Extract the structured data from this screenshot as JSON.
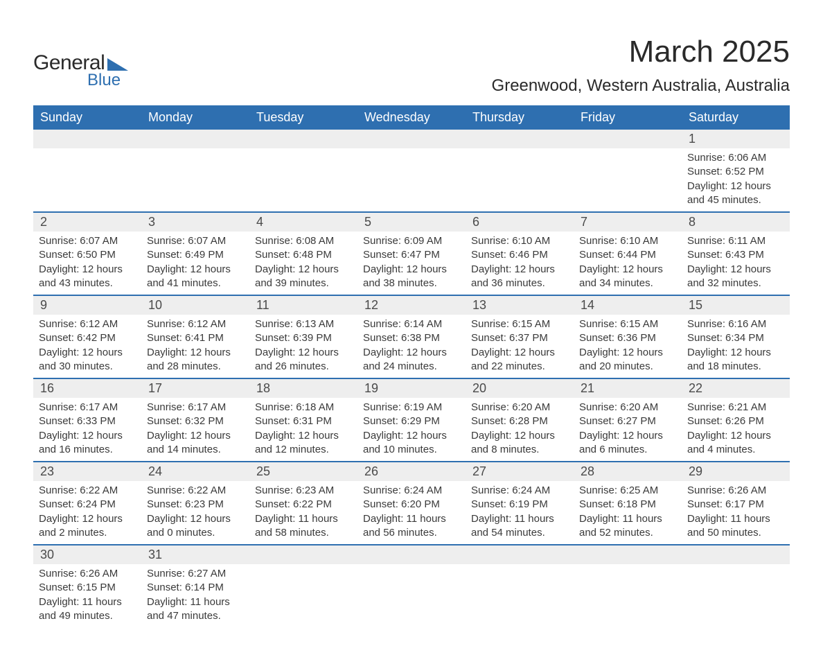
{
  "logo": {
    "general": "General",
    "blue": "Blue"
  },
  "title": "March 2025",
  "location": "Greenwood, Western Australia, Australia",
  "colors": {
    "header_bg": "#2e6fb0",
    "header_text": "#ffffff",
    "daynum_bg": "#eeeeee",
    "week_border": "#2e6fb0",
    "body_text": "#3a3a3a"
  },
  "days_of_week": [
    "Sunday",
    "Monday",
    "Tuesday",
    "Wednesday",
    "Thursday",
    "Friday",
    "Saturday"
  ],
  "weeks": [
    [
      null,
      null,
      null,
      null,
      null,
      null,
      {
        "n": "1",
        "sr": "Sunrise: 6:06 AM",
        "ss": "Sunset: 6:52 PM",
        "d1": "Daylight: 12 hours",
        "d2": "and 45 minutes."
      }
    ],
    [
      {
        "n": "2",
        "sr": "Sunrise: 6:07 AM",
        "ss": "Sunset: 6:50 PM",
        "d1": "Daylight: 12 hours",
        "d2": "and 43 minutes."
      },
      {
        "n": "3",
        "sr": "Sunrise: 6:07 AM",
        "ss": "Sunset: 6:49 PM",
        "d1": "Daylight: 12 hours",
        "d2": "and 41 minutes."
      },
      {
        "n": "4",
        "sr": "Sunrise: 6:08 AM",
        "ss": "Sunset: 6:48 PM",
        "d1": "Daylight: 12 hours",
        "d2": "and 39 minutes."
      },
      {
        "n": "5",
        "sr": "Sunrise: 6:09 AM",
        "ss": "Sunset: 6:47 PM",
        "d1": "Daylight: 12 hours",
        "d2": "and 38 minutes."
      },
      {
        "n": "6",
        "sr": "Sunrise: 6:10 AM",
        "ss": "Sunset: 6:46 PM",
        "d1": "Daylight: 12 hours",
        "d2": "and 36 minutes."
      },
      {
        "n": "7",
        "sr": "Sunrise: 6:10 AM",
        "ss": "Sunset: 6:44 PM",
        "d1": "Daylight: 12 hours",
        "d2": "and 34 minutes."
      },
      {
        "n": "8",
        "sr": "Sunrise: 6:11 AM",
        "ss": "Sunset: 6:43 PM",
        "d1": "Daylight: 12 hours",
        "d2": "and 32 minutes."
      }
    ],
    [
      {
        "n": "9",
        "sr": "Sunrise: 6:12 AM",
        "ss": "Sunset: 6:42 PM",
        "d1": "Daylight: 12 hours",
        "d2": "and 30 minutes."
      },
      {
        "n": "10",
        "sr": "Sunrise: 6:12 AM",
        "ss": "Sunset: 6:41 PM",
        "d1": "Daylight: 12 hours",
        "d2": "and 28 minutes."
      },
      {
        "n": "11",
        "sr": "Sunrise: 6:13 AM",
        "ss": "Sunset: 6:39 PM",
        "d1": "Daylight: 12 hours",
        "d2": "and 26 minutes."
      },
      {
        "n": "12",
        "sr": "Sunrise: 6:14 AM",
        "ss": "Sunset: 6:38 PM",
        "d1": "Daylight: 12 hours",
        "d2": "and 24 minutes."
      },
      {
        "n": "13",
        "sr": "Sunrise: 6:15 AM",
        "ss": "Sunset: 6:37 PM",
        "d1": "Daylight: 12 hours",
        "d2": "and 22 minutes."
      },
      {
        "n": "14",
        "sr": "Sunrise: 6:15 AM",
        "ss": "Sunset: 6:36 PM",
        "d1": "Daylight: 12 hours",
        "d2": "and 20 minutes."
      },
      {
        "n": "15",
        "sr": "Sunrise: 6:16 AM",
        "ss": "Sunset: 6:34 PM",
        "d1": "Daylight: 12 hours",
        "d2": "and 18 minutes."
      }
    ],
    [
      {
        "n": "16",
        "sr": "Sunrise: 6:17 AM",
        "ss": "Sunset: 6:33 PM",
        "d1": "Daylight: 12 hours",
        "d2": "and 16 minutes."
      },
      {
        "n": "17",
        "sr": "Sunrise: 6:17 AM",
        "ss": "Sunset: 6:32 PM",
        "d1": "Daylight: 12 hours",
        "d2": "and 14 minutes."
      },
      {
        "n": "18",
        "sr": "Sunrise: 6:18 AM",
        "ss": "Sunset: 6:31 PM",
        "d1": "Daylight: 12 hours",
        "d2": "and 12 minutes."
      },
      {
        "n": "19",
        "sr": "Sunrise: 6:19 AM",
        "ss": "Sunset: 6:29 PM",
        "d1": "Daylight: 12 hours",
        "d2": "and 10 minutes."
      },
      {
        "n": "20",
        "sr": "Sunrise: 6:20 AM",
        "ss": "Sunset: 6:28 PM",
        "d1": "Daylight: 12 hours",
        "d2": "and 8 minutes."
      },
      {
        "n": "21",
        "sr": "Sunrise: 6:20 AM",
        "ss": "Sunset: 6:27 PM",
        "d1": "Daylight: 12 hours",
        "d2": "and 6 minutes."
      },
      {
        "n": "22",
        "sr": "Sunrise: 6:21 AM",
        "ss": "Sunset: 6:26 PM",
        "d1": "Daylight: 12 hours",
        "d2": "and 4 minutes."
      }
    ],
    [
      {
        "n": "23",
        "sr": "Sunrise: 6:22 AM",
        "ss": "Sunset: 6:24 PM",
        "d1": "Daylight: 12 hours",
        "d2": "and 2 minutes."
      },
      {
        "n": "24",
        "sr": "Sunrise: 6:22 AM",
        "ss": "Sunset: 6:23 PM",
        "d1": "Daylight: 12 hours",
        "d2": "and 0 minutes."
      },
      {
        "n": "25",
        "sr": "Sunrise: 6:23 AM",
        "ss": "Sunset: 6:22 PM",
        "d1": "Daylight: 11 hours",
        "d2": "and 58 minutes."
      },
      {
        "n": "26",
        "sr": "Sunrise: 6:24 AM",
        "ss": "Sunset: 6:20 PM",
        "d1": "Daylight: 11 hours",
        "d2": "and 56 minutes."
      },
      {
        "n": "27",
        "sr": "Sunrise: 6:24 AM",
        "ss": "Sunset: 6:19 PM",
        "d1": "Daylight: 11 hours",
        "d2": "and 54 minutes."
      },
      {
        "n": "28",
        "sr": "Sunrise: 6:25 AM",
        "ss": "Sunset: 6:18 PM",
        "d1": "Daylight: 11 hours",
        "d2": "and 52 minutes."
      },
      {
        "n": "29",
        "sr": "Sunrise: 6:26 AM",
        "ss": "Sunset: 6:17 PM",
        "d1": "Daylight: 11 hours",
        "d2": "and 50 minutes."
      }
    ],
    [
      {
        "n": "30",
        "sr": "Sunrise: 6:26 AM",
        "ss": "Sunset: 6:15 PM",
        "d1": "Daylight: 11 hours",
        "d2": "and 49 minutes."
      },
      {
        "n": "31",
        "sr": "Sunrise: 6:27 AM",
        "ss": "Sunset: 6:14 PM",
        "d1": "Daylight: 11 hours",
        "d2": "and 47 minutes."
      },
      null,
      null,
      null,
      null,
      null
    ]
  ]
}
